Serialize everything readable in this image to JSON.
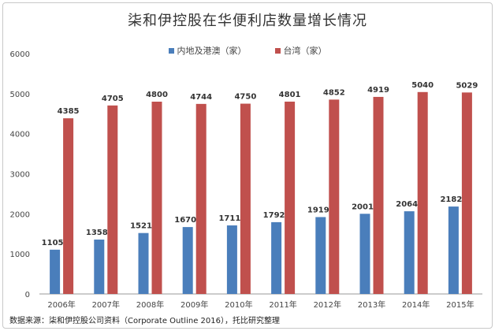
{
  "chart_data": {
    "type": "bar",
    "title": "柒和伊控股在华便利店数量增长情况",
    "categories": [
      "2006年",
      "2007年",
      "2008年",
      "2009年",
      "2010年",
      "2011年",
      "2012年",
      "2013年",
      "2014年",
      "2015年"
    ],
    "series": [
      {
        "name": "内地及港澳（家）",
        "color": "#4a7ebb",
        "values": [
          1105,
          1358,
          1521,
          1670,
          1711,
          1792,
          1919,
          2001,
          2064,
          2182
        ]
      },
      {
        "name": "台湾（家）",
        "color": "#c0504d",
        "values": [
          4385,
          4705,
          4800,
          4744,
          4750,
          4801,
          4852,
          4919,
          5040,
          5029
        ]
      }
    ],
    "ylim": [
      0,
      6000
    ],
    "yticks": [
      0,
      1000,
      2000,
      3000,
      4000,
      5000,
      6000
    ],
    "xlabel": "",
    "ylabel": "",
    "legend_position": "top-center"
  },
  "footer": {
    "source": "数据来源：柒和伊控股公司资料（Corporate Outline 2016），托比研究整理"
  }
}
